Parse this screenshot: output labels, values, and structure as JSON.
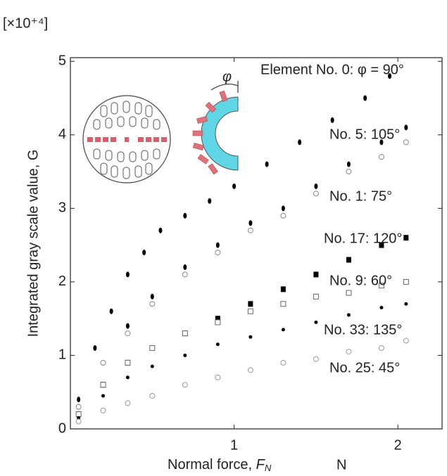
{
  "chart_data": {
    "type": "scatter",
    "y_multiplier": "[×10⁺⁴]",
    "ylabel": "Integrated gray scale value, G",
    "xlabel": "Normal force, ",
    "xlabel_symbol": "F",
    "xlabel_subscript": "N",
    "xlabel_unit": "N",
    "inset_label": "φ",
    "xlim": [
      0,
      2.27
    ],
    "ylim": [
      0,
      5.05
    ],
    "xticks": [
      1,
      2
    ],
    "yticks": [
      0,
      1,
      2,
      3,
      4,
      5
    ],
    "series": [
      {
        "name": "Element No. 0: φ = 90°",
        "color": "#000000",
        "marker": "filled-circle",
        "x": [
          0.05,
          0.15,
          0.25,
          0.35,
          0.45,
          0.55,
          0.7,
          0.85,
          1.0,
          1.2,
          1.4,
          1.6,
          1.8,
          1.95
        ],
        "values": [
          0.4,
          1.1,
          1.6,
          2.1,
          2.4,
          2.7,
          2.9,
          3.1,
          3.3,
          3.6,
          3.9,
          4.2,
          4.5,
          4.8
        ]
      },
      {
        "name": "No. 5: 105°",
        "color": "#000000",
        "marker": "filled-circle",
        "x": [
          0.05,
          0.2,
          0.35,
          0.5,
          0.7,
          0.9,
          1.1,
          1.3,
          1.5,
          1.7,
          1.9,
          2.05
        ],
        "values": [
          0.3,
          0.9,
          1.4,
          1.8,
          2.2,
          2.5,
          2.8,
          3.0,
          3.3,
          3.6,
          3.9,
          4.1
        ]
      },
      {
        "name": "No. 1: 75°",
        "color": "#888888",
        "marker": "open-circle",
        "x": [
          0.05,
          0.2,
          0.35,
          0.5,
          0.7,
          0.9,
          1.1,
          1.3,
          1.5,
          1.7,
          1.9,
          2.05
        ],
        "values": [
          0.3,
          0.9,
          1.3,
          1.7,
          2.1,
          2.4,
          2.7,
          2.9,
          3.2,
          3.5,
          3.7,
          3.9
        ]
      },
      {
        "name": "No. 17: 120°",
        "color": "#000000",
        "marker": "filled-square",
        "x": [
          0.05,
          0.2,
          0.35,
          0.5,
          0.7,
          0.9,
          1.1,
          1.3,
          1.5,
          1.7,
          1.9,
          2.05
        ],
        "values": [
          0.2,
          0.6,
          0.9,
          1.1,
          1.3,
          1.5,
          1.7,
          1.9,
          2.1,
          2.3,
          2.5,
          2.6
        ]
      },
      {
        "name": "No. 9: 60°",
        "color": "#666666",
        "marker": "open-square",
        "x": [
          0.05,
          0.2,
          0.35,
          0.5,
          0.7,
          0.9,
          1.1,
          1.3,
          1.5,
          1.7,
          1.9,
          2.05
        ],
        "values": [
          0.2,
          0.6,
          0.9,
          1.1,
          1.3,
          1.45,
          1.6,
          1.7,
          1.8,
          1.85,
          1.95,
          2.0
        ]
      },
      {
        "name": "No. 33: 135°",
        "color": "#000000",
        "marker": "small-dot",
        "x": [
          0.05,
          0.2,
          0.35,
          0.5,
          0.7,
          0.9,
          1.1,
          1.3,
          1.5,
          1.7,
          1.9,
          2.05
        ],
        "values": [
          0.15,
          0.45,
          0.7,
          0.85,
          1.0,
          1.15,
          1.25,
          1.35,
          1.45,
          1.55,
          1.65,
          1.7
        ]
      },
      {
        "name": "No. 25: 45°",
        "color": "#999999",
        "marker": "open-circle",
        "x": [
          0.05,
          0.2,
          0.35,
          0.5,
          0.7,
          0.9,
          1.1,
          1.3,
          1.5,
          1.7,
          1.9,
          2.05
        ],
        "values": [
          0.1,
          0.25,
          0.35,
          0.45,
          0.6,
          0.7,
          0.8,
          0.9,
          0.95,
          1.05,
          1.1,
          1.2
        ]
      }
    ]
  }
}
